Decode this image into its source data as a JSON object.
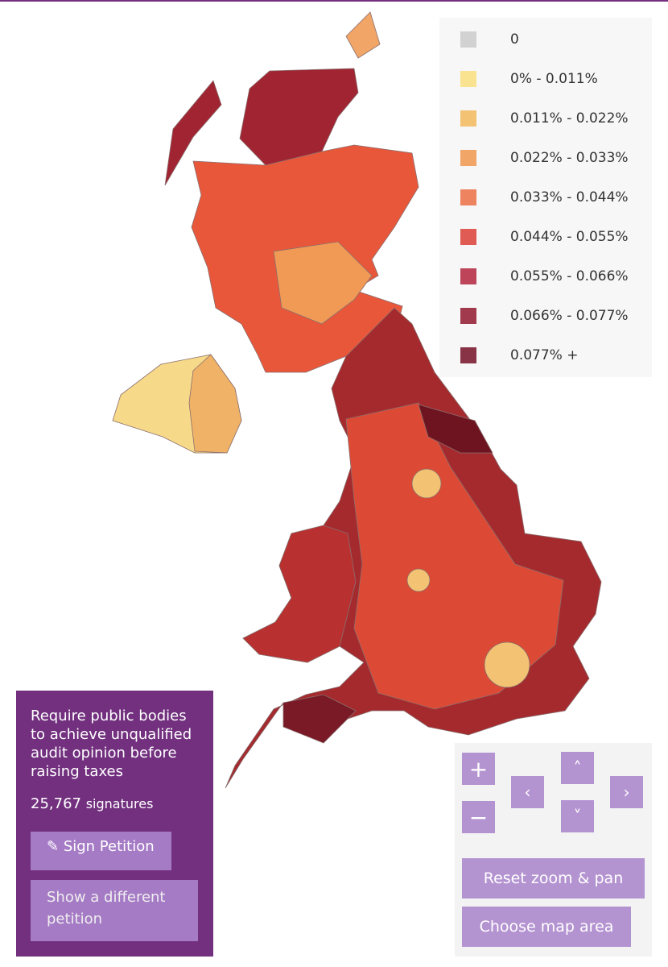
{
  "legend": {
    "items": [
      {
        "label": "0",
        "color": "#d2d2d2"
      },
      {
        "label": "0% - 0.011%",
        "color": "#f9e290"
      },
      {
        "label": "0.011% - 0.022%",
        "color": "#f3c272"
      },
      {
        "label": "0.022% - 0.033%",
        "color": "#f1a566"
      },
      {
        "label": "0.033% - 0.044%",
        "color": "#ee8360"
      },
      {
        "label": "0.044% - 0.055%",
        "color": "#df5b53"
      },
      {
        "label": "0.055% - 0.066%",
        "color": "#bd4459"
      },
      {
        "label": "0.066% - 0.077%",
        "color": "#a13a4d"
      },
      {
        "label": "0.077% +",
        "color": "#883346"
      }
    ]
  },
  "petition": {
    "title": "Require public bodies to achieve unqualified audit opinion before raising taxes",
    "signatures": "25,767",
    "signatures_label": "signatures",
    "sign_button": "Sign Petition",
    "other_button": "Show a different petition"
  },
  "controls": {
    "zoom_in": "+",
    "zoom_out": "−",
    "up": "˄",
    "left": "‹",
    "right": "›",
    "down": "˅",
    "reset": "Reset zoom & pan",
    "choose": "Choose map area"
  }
}
